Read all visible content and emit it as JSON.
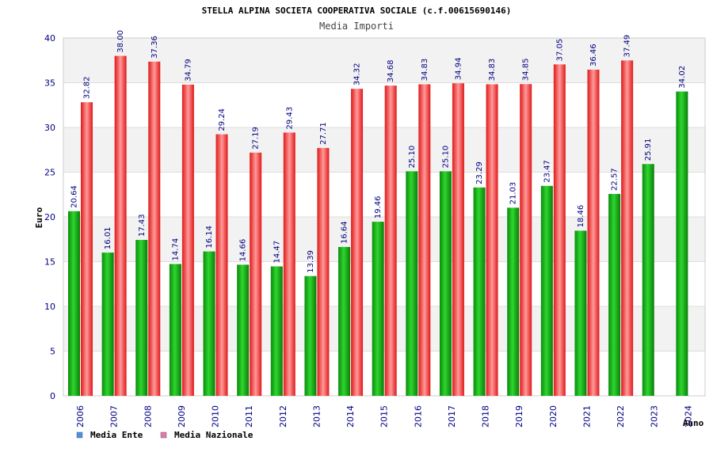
{
  "chart_data": {
    "type": "bar",
    "title": "STELLA ALPINA SOCIETA COOPERATIVA SOCIALE (c.f.00615690146)",
    "subtitle": "Media Importi",
    "xlabel": "Anno",
    "ylabel": "Euro",
    "ylim": [
      0,
      40
    ],
    "yticks": [
      0,
      5,
      10,
      15,
      20,
      25,
      30,
      35,
      40
    ],
    "categories": [
      "2006",
      "2007",
      "2008",
      "2009",
      "2010",
      "2011",
      "2012",
      "2013",
      "2014",
      "2015",
      "2016",
      "2017",
      "2018",
      "2019",
      "2020",
      "2021",
      "2022",
      "2023",
      "2024"
    ],
    "series": [
      {
        "name": "Media Ente",
        "color": "#22aa22",
        "values": [
          20.64,
          16.01,
          17.43,
          14.74,
          16.14,
          14.66,
          14.47,
          13.39,
          16.64,
          19.46,
          25.1,
          25.1,
          23.29,
          21.03,
          23.47,
          18.46,
          22.57,
          25.91,
          34.02
        ],
        "labels": [
          "20.64",
          "16.01",
          "17.43",
          "14.74",
          "16.14",
          "14.66",
          "14.47",
          "13.39",
          "16.64",
          "19.46",
          "25.10",
          "25.10",
          "23.29",
          "21.03",
          "23.47",
          "18.46",
          "22.57",
          "25.91",
          "34.02"
        ]
      },
      {
        "name": "Media Nazionale",
        "color": "#ee2222",
        "values": [
          32.82,
          38.0,
          37.36,
          34.79,
          29.24,
          27.19,
          29.43,
          27.71,
          34.32,
          34.68,
          34.83,
          34.94,
          34.83,
          34.85,
          37.05,
          36.46,
          37.49,
          null,
          null
        ],
        "labels": [
          "32.82",
          "38.00",
          "37.36",
          "34.79",
          "29.24",
          "27.19",
          "29.43",
          "27.71",
          "34.32",
          "34.68",
          "34.83",
          "34.94",
          "34.83",
          "34.85",
          "37.05",
          "36.46",
          "37.49",
          null,
          null
        ]
      }
    ],
    "legend": [
      {
        "label": "Media Ente",
        "color": "#4a90e2"
      },
      {
        "label": "Media Nazionale",
        "color": "#e07aa8"
      }
    ],
    "legend_position": "bottom-left",
    "grid": true,
    "band_colors": [
      "#f2f2f2",
      "#ffffff"
    ]
  }
}
